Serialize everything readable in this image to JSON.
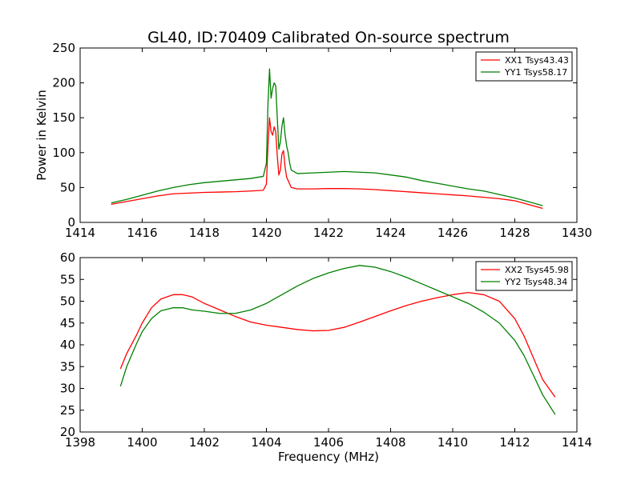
{
  "chart_data": [
    {
      "type": "line",
      "title": "GL40, ID:70409 Calibrated On-source spectrum",
      "xlabel": "",
      "ylabel": "Power in Kelvin",
      "xlim": [
        1414,
        1430
      ],
      "ylim": [
        0,
        250
      ],
      "xticks": [
        1414,
        1416,
        1418,
        1420,
        1422,
        1424,
        1426,
        1428,
        1430
      ],
      "yticks": [
        0,
        50,
        100,
        150,
        200,
        250
      ],
      "legend_position": "top-right",
      "grid": false,
      "series": [
        {
          "name": "XX1 Tsys43.43",
          "color": "#ff0000",
          "x": [
            1415,
            1415.5,
            1416,
            1416.5,
            1417,
            1417.5,
            1418,
            1418.5,
            1419,
            1419.5,
            1419.9,
            1420.0,
            1420.05,
            1420.1,
            1420.15,
            1420.2,
            1420.25,
            1420.3,
            1420.35,
            1420.4,
            1420.45,
            1420.5,
            1420.55,
            1420.6,
            1420.65,
            1420.7,
            1420.75,
            1420.8,
            1421.0,
            1421.5,
            1422.0,
            1422.5,
            1423.0,
            1423.5,
            1424.0,
            1424.5,
            1425.0,
            1425.5,
            1426.0,
            1426.5,
            1427.0,
            1427.5,
            1428.0,
            1428.5,
            1428.9
          ],
          "y": [
            26,
            30,
            34,
            38,
            41,
            42,
            43,
            43.5,
            44,
            45,
            46,
            55,
            110,
            150,
            130,
            125,
            137,
            130,
            95,
            68,
            75,
            98,
            103,
            80,
            65,
            60,
            55,
            50,
            48,
            48,
            48.5,
            48.5,
            48,
            47,
            45.5,
            44,
            42.5,
            41,
            39.5,
            38,
            36,
            34,
            31,
            25,
            20
          ]
        },
        {
          "name": "YY1 Tsys58.17",
          "color": "#008000",
          "x": [
            1415,
            1415.5,
            1416,
            1416.5,
            1417,
            1417.5,
            1418,
            1418.5,
            1419,
            1419.5,
            1419.9,
            1420.0,
            1420.05,
            1420.1,
            1420.15,
            1420.2,
            1420.25,
            1420.3,
            1420.35,
            1420.4,
            1420.45,
            1420.5,
            1420.55,
            1420.6,
            1420.65,
            1420.7,
            1420.75,
            1420.8,
            1421.0,
            1421.5,
            1422.0,
            1422.5,
            1423.0,
            1423.5,
            1424.0,
            1424.5,
            1425.0,
            1425.5,
            1426.0,
            1426.5,
            1427.0,
            1427.5,
            1428.0,
            1428.5,
            1428.9
          ],
          "y": [
            28,
            33,
            39,
            45,
            50,
            54,
            57,
            59,
            61,
            63,
            66,
            85,
            170,
            220,
            178,
            192,
            200,
            196,
            150,
            105,
            115,
            138,
            150,
            126,
            110,
            100,
            85,
            75,
            70,
            71,
            72,
            73,
            72,
            71,
            68,
            65,
            60,
            56,
            52,
            48,
            45,
            40,
            35,
            29,
            24
          ]
        }
      ]
    },
    {
      "type": "line",
      "title": "",
      "xlabel": "Frequency (MHz)",
      "ylabel": "",
      "xlim": [
        1398,
        1414
      ],
      "ylim": [
        20,
        60
      ],
      "xticks": [
        1398,
        1400,
        1402,
        1404,
        1406,
        1408,
        1410,
        1412,
        1414
      ],
      "yticks": [
        20,
        25,
        30,
        35,
        40,
        45,
        50,
        55,
        60
      ],
      "legend_position": "top-right",
      "grid": false,
      "series": [
        {
          "name": "XX2 Tsys45.98",
          "color": "#ff0000",
          "x": [
            1399.3,
            1399.5,
            1399.8,
            1400.0,
            1400.3,
            1400.6,
            1401.0,
            1401.3,
            1401.6,
            1402.0,
            1402.5,
            1403.0,
            1403.5,
            1404.0,
            1404.5,
            1405.0,
            1405.5,
            1406.0,
            1406.5,
            1407.0,
            1407.5,
            1408.0,
            1408.5,
            1409.0,
            1409.5,
            1410.0,
            1410.5,
            1411.0,
            1411.5,
            1412.0,
            1412.3,
            1412.6,
            1412.9,
            1413.3
          ],
          "y": [
            34.5,
            38,
            42,
            45,
            48.5,
            50.5,
            51.5,
            51.5,
            51,
            49.5,
            48,
            46.5,
            45.2,
            44.5,
            44,
            43.5,
            43.2,
            43.3,
            44,
            45.2,
            46.5,
            47.8,
            49,
            50,
            50.8,
            51.5,
            52,
            51.5,
            50,
            46,
            42,
            37,
            32,
            28
          ]
        },
        {
          "name": "YY2 Tsys48.34",
          "color": "#008000",
          "x": [
            1399.3,
            1399.5,
            1399.8,
            1400.0,
            1400.3,
            1400.6,
            1401.0,
            1401.3,
            1401.6,
            1402.0,
            1402.5,
            1403.0,
            1403.5,
            1404.0,
            1404.5,
            1405.0,
            1405.5,
            1406.0,
            1406.5,
            1407.0,
            1407.5,
            1408.0,
            1408.5,
            1409.0,
            1409.5,
            1410.0,
            1410.5,
            1411.0,
            1411.5,
            1412.0,
            1412.3,
            1412.6,
            1412.9,
            1413.3
          ],
          "y": [
            30.5,
            35,
            40,
            43,
            46,
            47.8,
            48.5,
            48.5,
            48,
            47.7,
            47.2,
            47.2,
            48,
            49.5,
            51.5,
            53.5,
            55.2,
            56.5,
            57.5,
            58.2,
            57.8,
            56.8,
            55.5,
            54,
            52.5,
            51,
            49.5,
            47.5,
            45,
            41,
            37.5,
            33,
            28.5,
            24
          ]
        }
      ]
    }
  ]
}
